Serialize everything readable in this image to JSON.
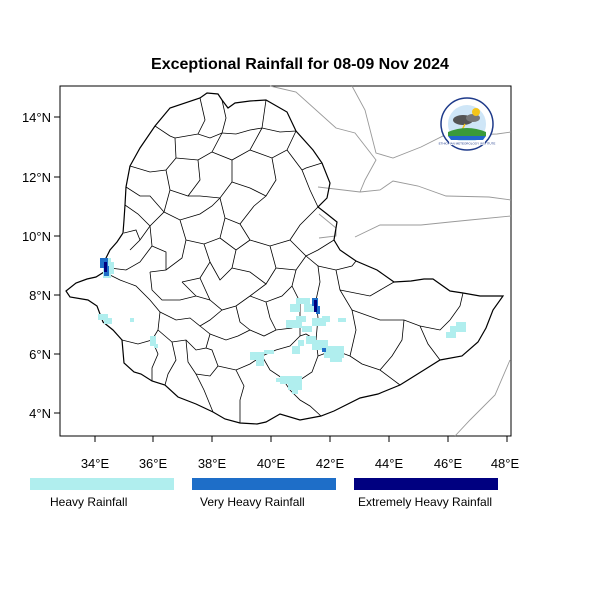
{
  "title": "Exceptional Rainfall for 08-09 Nov 2024",
  "axes": {
    "x_ticks": [
      "34°E",
      "36°E",
      "38°E",
      "40°E",
      "42°E",
      "44°E",
      "46°E",
      "48°E"
    ],
    "y_ticks": [
      "14°N",
      "12°N",
      "10°N",
      "8°N",
      "6°N",
      "4°N"
    ]
  },
  "legend": [
    {
      "label": "Heavy Rainfall",
      "color": "#b0eeee"
    },
    {
      "label": "Very Heavy Rainfall",
      "color": "#1e6ec8"
    },
    {
      "label": "Extremely Heavy Rainfall",
      "color": "#000080"
    }
  ],
  "logo": {
    "icon": "ethiopian-meteorology-institute-logo",
    "text": "ETHIOPIAN METEOROLOGY INSTITUTE"
  },
  "colors": {
    "heavy": "#b0eeee",
    "very_heavy": "#1e6ec8",
    "extremely_heavy": "#000080",
    "border": "#000000",
    "neighbor_border": "#999999"
  }
}
